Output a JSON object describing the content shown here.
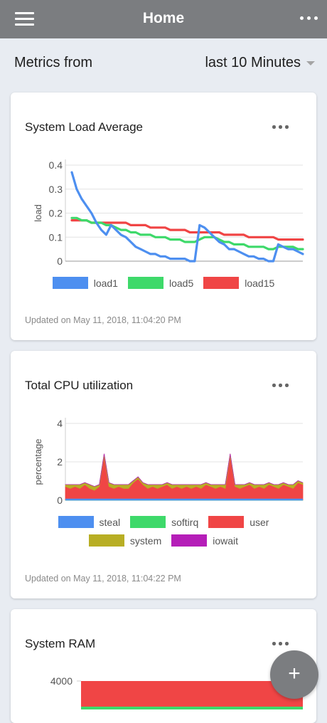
{
  "navbar": {
    "title": "Home",
    "menu_icon": "hamburger-menu-icon",
    "more_icon": "more-horizontal-icon"
  },
  "filter": {
    "label": "Metrics from",
    "selected": "last 10 Minutes"
  },
  "cards": [
    {
      "title": "System Load Average",
      "updated": "Updated on May 11, 2018, 11:04:20 PM"
    },
    {
      "title": "Total CPU utilization",
      "updated": "Updated on May 11, 2018, 11:04:22 PM"
    },
    {
      "title": "System RAM"
    }
  ],
  "fab": {
    "label": "+"
  },
  "chart_data": [
    {
      "type": "line",
      "title": "System Load Average",
      "ylabel": "load",
      "ylim": [
        0,
        0.4
      ],
      "yticks": [
        "0",
        "0.1",
        "0.2",
        "0.3",
        "0.4"
      ],
      "series": [
        {
          "name": "load1",
          "color": "#4d8ff0",
          "values": [
            0.37,
            0.3,
            0.26,
            0.23,
            0.2,
            0.16,
            0.13,
            0.11,
            0.15,
            0.13,
            0.11,
            0.1,
            0.08,
            0.06,
            0.05,
            0.04,
            0.03,
            0.03,
            0.02,
            0.02,
            0.01,
            0.01,
            0.01,
            0.01,
            0.0,
            0.0,
            0.15,
            0.14,
            0.12,
            0.1,
            0.08,
            0.07,
            0.05,
            0.05,
            0.04,
            0.03,
            0.02,
            0.02,
            0.01,
            0.01,
            0.0,
            0.0,
            0.07,
            0.06,
            0.05,
            0.05,
            0.04,
            0.03
          ]
        },
        {
          "name": "load5",
          "color": "#3ed96a",
          "values": [
            0.18,
            0.18,
            0.17,
            0.17,
            0.16,
            0.16,
            0.16,
            0.15,
            0.15,
            0.14,
            0.13,
            0.13,
            0.12,
            0.12,
            0.11,
            0.11,
            0.11,
            0.1,
            0.1,
            0.1,
            0.09,
            0.09,
            0.09,
            0.08,
            0.08,
            0.08,
            0.09,
            0.1,
            0.1,
            0.1,
            0.09,
            0.08,
            0.08,
            0.07,
            0.07,
            0.07,
            0.06,
            0.06,
            0.06,
            0.06,
            0.05,
            0.05,
            0.06,
            0.06,
            0.06,
            0.06,
            0.05,
            0.05
          ]
        },
        {
          "name": "load15",
          "color": "#f04545",
          "values": [
            0.17,
            0.17,
            0.17,
            0.17,
            0.16,
            0.16,
            0.16,
            0.16,
            0.16,
            0.16,
            0.16,
            0.16,
            0.15,
            0.15,
            0.15,
            0.15,
            0.14,
            0.14,
            0.14,
            0.14,
            0.13,
            0.13,
            0.13,
            0.13,
            0.12,
            0.12,
            0.12,
            0.12,
            0.12,
            0.12,
            0.12,
            0.11,
            0.11,
            0.11,
            0.11,
            0.11,
            0.1,
            0.1,
            0.1,
            0.1,
            0.1,
            0.1,
            0.09,
            0.09,
            0.09,
            0.09,
            0.09,
            0.09
          ]
        }
      ]
    },
    {
      "type": "area",
      "title": "Total CPU utilization",
      "ylabel": "percentage",
      "ylim": [
        0,
        4
      ],
      "yticks": [
        "0",
        "2",
        "4"
      ],
      "series": [
        {
          "name": "steal",
          "color": "#4d8ff0",
          "values": [
            0,
            0,
            0,
            0,
            0,
            0,
            0,
            0,
            0,
            0,
            0,
            0,
            0,
            0,
            0,
            0,
            0,
            0,
            0,
            0,
            0,
            0,
            0,
            0,
            0,
            0,
            0,
            0,
            0,
            0,
            0,
            0,
            0,
            0,
            0,
            0,
            0,
            0,
            0,
            0,
            0,
            0,
            0,
            0,
            0,
            0,
            0,
            0,
            0,
            0
          ]
        },
        {
          "name": "softirq",
          "color": "#3ed96a",
          "values": [
            0.02,
            0.02,
            0.02,
            0.02,
            0.02,
            0.02,
            0.02,
            0.02,
            0.02,
            0.02,
            0.02,
            0.02,
            0.02,
            0.02,
            0.02,
            0.02,
            0.02,
            0.02,
            0.02,
            0.02,
            0.02,
            0.02,
            0.02,
            0.02,
            0.02,
            0.02,
            0.02,
            0.02,
            0.02,
            0.02,
            0.02,
            0.02,
            0.02,
            0.02,
            0.02,
            0.02,
            0.02,
            0.02,
            0.02,
            0.02,
            0.02,
            0.02,
            0.02,
            0.02,
            0.02,
            0.02,
            0.02,
            0.02,
            0.02,
            0.02
          ]
        },
        {
          "name": "user",
          "color": "#f04545",
          "values": [
            0.7,
            0.6,
            0.7,
            0.6,
            0.8,
            0.6,
            0.5,
            0.7,
            2.3,
            0.7,
            0.6,
            0.7,
            0.6,
            0.6,
            0.9,
            1.1,
            0.8,
            0.6,
            0.7,
            0.6,
            0.7,
            0.8,
            0.6,
            0.7,
            0.6,
            0.7,
            0.6,
            0.7,
            0.6,
            0.8,
            0.7,
            0.6,
            0.7,
            0.6,
            2.3,
            0.7,
            0.6,
            0.7,
            0.8,
            0.6,
            0.7,
            0.6,
            0.8,
            0.7,
            0.6,
            0.8,
            0.7,
            0.6,
            0.9,
            0.8
          ]
        },
        {
          "name": "system",
          "color": "#b8ae24",
          "values": [
            0.1,
            0.2,
            0.1,
            0.2,
            0.1,
            0.2,
            0.2,
            0.1,
            0.1,
            0.2,
            0.2,
            0.1,
            0.2,
            0.2,
            0.1,
            0.1,
            0.1,
            0.2,
            0.1,
            0.2,
            0.1,
            0.1,
            0.2,
            0.1,
            0.2,
            0.1,
            0.2,
            0.1,
            0.2,
            0.1,
            0.1,
            0.2,
            0.1,
            0.2,
            0.1,
            0.1,
            0.2,
            0.1,
            0.1,
            0.2,
            0.1,
            0.2,
            0.1,
            0.1,
            0.2,
            0.1,
            0.1,
            0.2,
            0.1,
            0.1
          ]
        },
        {
          "name": "iowait",
          "color": "#b51eb8",
          "values": [
            0,
            0,
            0,
            0,
            0,
            0,
            0,
            0,
            0,
            0,
            0,
            0,
            0,
            0,
            0,
            0,
            0,
            0,
            0,
            0,
            0,
            0,
            0,
            0,
            0,
            0,
            0,
            0,
            0,
            0,
            0,
            0,
            0,
            0,
            0,
            0,
            0,
            0,
            0,
            0,
            0,
            0,
            0,
            0,
            0,
            0,
            0,
            0,
            0,
            0
          ]
        }
      ]
    },
    {
      "type": "area",
      "title": "System RAM",
      "yticks": [
        "4000"
      ],
      "ylim": [
        0,
        4000
      ],
      "series": [
        {
          "color": "#f04545",
          "values": [
            4000,
            4000
          ]
        },
        {
          "color": "#3ed96a",
          "values": [
            0,
            0
          ]
        }
      ]
    }
  ]
}
